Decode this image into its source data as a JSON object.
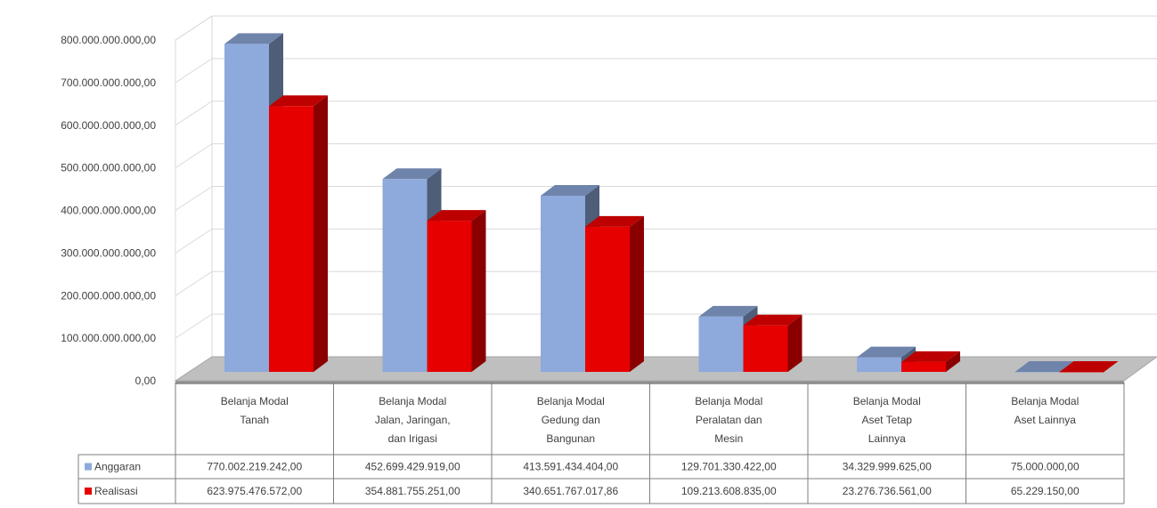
{
  "chart_data": {
    "type": "bar",
    "style": "3d-clustered-column-with-data-table",
    "categories": [
      [
        "Belanja Modal",
        "Tanah"
      ],
      [
        "Belanja Modal",
        "Jalan, Jaringan,",
        "dan Irigasi"
      ],
      [
        "Belanja Modal",
        "Gedung dan",
        "Bangunan"
      ],
      [
        "Belanja Modal",
        "Peralatan dan",
        "Mesin"
      ],
      [
        "Belanja Modal",
        "Aset Tetap",
        "Lainnya"
      ],
      [
        "Belanja Modal",
        "Aset Lainnya"
      ]
    ],
    "series": [
      {
        "name": "Anggaran",
        "color": "#8EA9DB",
        "values": [
          770002219242.0,
          452699429919.0,
          413591434404.0,
          129701330422.0,
          34329999625.0,
          75000000.0
        ],
        "labels": [
          "770.002.219.242,00",
          "452.699.429.919,00",
          "413.591.434.404,00",
          "129.701.330.422,00",
          "34.329.999.625,00",
          "75.000.000,00"
        ]
      },
      {
        "name": "Realisasi",
        "color": "#E60000",
        "values": [
          623975476572.0,
          354881755251.0,
          340651767017.86,
          109213608835.0,
          23276736561.0,
          65229150.0
        ],
        "labels": [
          "623.975.476.572,00",
          "354.881.755.251,00",
          "340.651.767.017,86",
          "109.213.608.835,00",
          "23.276.736.561,00",
          "65.229.150,00"
        ]
      }
    ],
    "ylim": [
      0,
      800000000000
    ],
    "yticks": [
      {
        "value": 0,
        "label": "0,00"
      },
      {
        "value": 100000000000,
        "label": "100.000.000.000,00"
      },
      {
        "value": 200000000000,
        "label": "200.000.000.000,00"
      },
      {
        "value": 300000000000,
        "label": "300.000.000.000,00"
      },
      {
        "value": 400000000000,
        "label": "400.000.000.000,00"
      },
      {
        "value": 500000000000,
        "label": "500.000.000.000,00"
      },
      {
        "value": 600000000000,
        "label": "600.000.000.000,00"
      },
      {
        "value": 700000000000,
        "label": "700.000.000.000,00"
      },
      {
        "value": 800000000000,
        "label": "800.000.000.000,00"
      }
    ],
    "grid": true,
    "legend": "data-table"
  }
}
